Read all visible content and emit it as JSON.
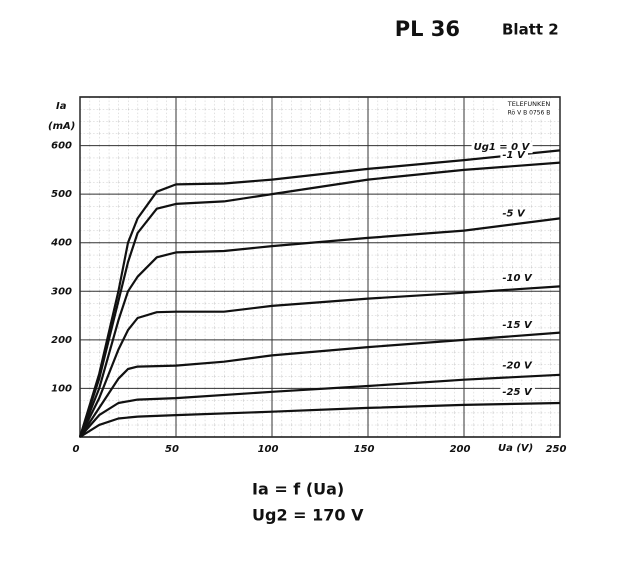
{
  "chart_data": {
    "type": "line",
    "title": "PL 36",
    "subtitle": "Blatt 2",
    "maker": "TELEFUNKEN",
    "drawing_no": "Rö V B 0756 B",
    "y_label": "Ia",
    "y_unit": "(mA)",
    "x_label": "Ua (V)",
    "formula": "Ia = f (Ua)",
    "condition": "Ug2 = 170 V",
    "xlim": [
      0,
      250
    ],
    "ylim": [
      0,
      700
    ],
    "xticks": [
      0,
      50,
      100,
      150,
      200,
      250
    ],
    "yticks": [
      100,
      200,
      300,
      400,
      500,
      600
    ],
    "grid": true,
    "series": [
      {
        "name": "Ug1 = 0 V",
        "color": "#111111",
        "x": [
          0,
          10,
          20,
          25,
          30,
          40,
          50,
          75,
          100,
          150,
          200,
          250
        ],
        "values": [
          0,
          130,
          300,
          400,
          450,
          505,
          520,
          522,
          530,
          552,
          570,
          590
        ]
      },
      {
        "name": "-1 V",
        "color": "#111111",
        "x": [
          0,
          10,
          20,
          25,
          30,
          40,
          50,
          75,
          100,
          150,
          200,
          250
        ],
        "values": [
          0,
          120,
          280,
          360,
          420,
          470,
          480,
          485,
          500,
          530,
          550,
          565
        ]
      },
      {
        "name": "-5 V",
        "color": "#111111",
        "x": [
          0,
          10,
          20,
          25,
          30,
          40,
          50,
          75,
          100,
          150,
          200,
          250
        ],
        "values": [
          0,
          100,
          240,
          300,
          330,
          370,
          380,
          383,
          393,
          410,
          425,
          450
        ]
      },
      {
        "name": "-10 V",
        "color": "#111111",
        "x": [
          0,
          10,
          20,
          25,
          30,
          40,
          50,
          75,
          100,
          150,
          200,
          250
        ],
        "values": [
          0,
          80,
          180,
          220,
          245,
          257,
          258,
          258,
          270,
          285,
          297,
          310
        ]
      },
      {
        "name": "-15 V",
        "color": "#111111",
        "x": [
          0,
          10,
          20,
          25,
          30,
          50,
          75,
          100,
          150,
          200,
          250
        ],
        "values": [
          0,
          60,
          120,
          140,
          145,
          147,
          155,
          168,
          185,
          200,
          215
        ]
      },
      {
        "name": "-20 V",
        "color": "#111111",
        "x": [
          0,
          10,
          20,
          30,
          50,
          100,
          150,
          200,
          250
        ],
        "values": [
          0,
          45,
          70,
          77,
          80,
          93,
          105,
          118,
          128
        ]
      },
      {
        "name": "-25 V",
        "color": "#111111",
        "x": [
          0,
          10,
          20,
          30,
          50,
          100,
          150,
          200,
          250
        ],
        "values": [
          0,
          25,
          38,
          42,
          45,
          52,
          60,
          66,
          70
        ]
      }
    ]
  }
}
